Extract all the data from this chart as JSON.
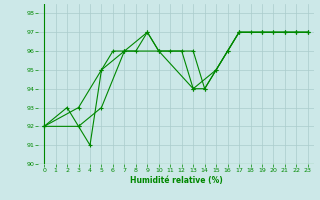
{
  "xlabel": "Humidité relative (%)",
  "background_color": "#cce8e8",
  "grid_color": "#aacccc",
  "line_color": "#008800",
  "xlim": [
    -0.5,
    23.5
  ],
  "ylim": [
    90,
    98.5
  ],
  "xticks": [
    0,
    1,
    2,
    3,
    4,
    5,
    6,
    7,
    8,
    9,
    10,
    11,
    12,
    13,
    14,
    15,
    16,
    17,
    18,
    19,
    20,
    21,
    22,
    23
  ],
  "yticks": [
    90,
    91,
    92,
    93,
    94,
    95,
    96,
    97,
    98
  ],
  "line1": {
    "x": [
      0,
      2,
      3,
      4,
      5,
      6,
      7,
      8,
      9,
      10,
      11,
      12,
      13,
      14,
      15,
      16,
      17,
      18,
      19,
      20,
      21,
      22,
      23
    ],
    "y": [
      92,
      93,
      92,
      91,
      95,
      96,
      96,
      96,
      97,
      96,
      96,
      96,
      94,
      94,
      95,
      96,
      97,
      97,
      97,
      97,
      97,
      97,
      97
    ]
  },
  "line2": {
    "x": [
      0,
      3,
      5,
      7,
      10,
      13,
      15,
      17,
      19,
      21,
      22,
      23
    ],
    "y": [
      92,
      92,
      93,
      96,
      96,
      94,
      95,
      97,
      97,
      97,
      97,
      97
    ]
  },
  "line3": {
    "x": [
      0,
      3,
      5,
      7,
      9,
      10,
      13,
      14,
      16,
      17,
      19,
      20,
      21,
      22,
      23
    ],
    "y": [
      92,
      93,
      95,
      96,
      97,
      96,
      96,
      94,
      96,
      97,
      97,
      97,
      97,
      97,
      97
    ]
  }
}
